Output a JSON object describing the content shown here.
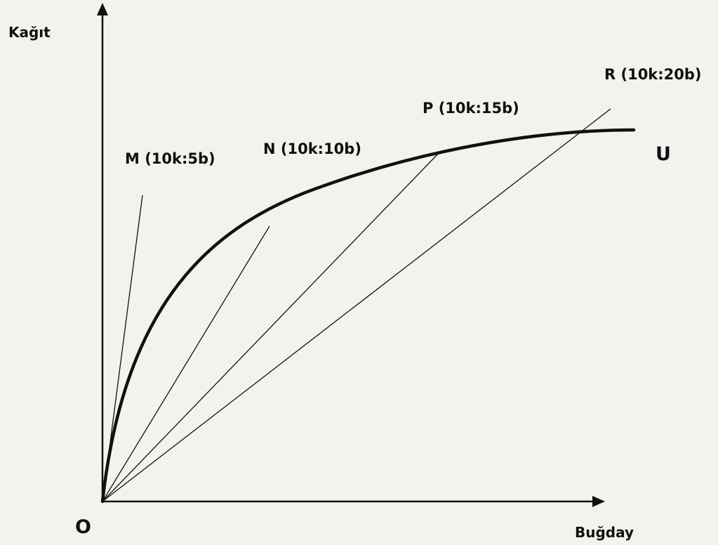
{
  "axes": {
    "y_label": "Kağıt",
    "x_label": "Buğday",
    "origin_label": "O"
  },
  "curve": {
    "label": "U"
  },
  "rays": [
    {
      "id": "M",
      "label": "M (10k:5b)"
    },
    {
      "id": "N",
      "label": "N (10k:10b)"
    },
    {
      "id": "P",
      "label": "P (10k:15b)"
    },
    {
      "id": "R",
      "label": "R (10k:20b)"
    }
  ],
  "colors": {
    "background": "#f4f2ee",
    "ink": "#111111"
  }
}
